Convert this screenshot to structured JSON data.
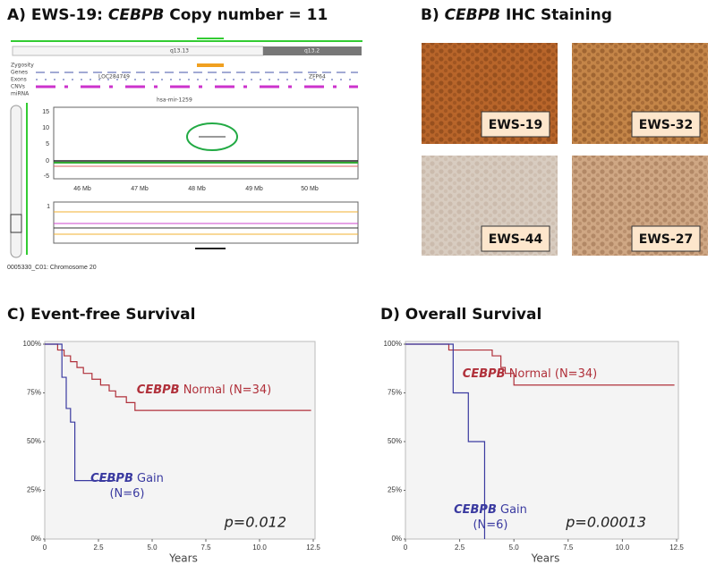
{
  "panel_a": {
    "title_prefix": "A) EWS-19: ",
    "title_gene": "CEBPB",
    "title_suffix": " Copy number = 11",
    "bands": [
      "q13.13",
      "q13.2"
    ],
    "tracks": [
      "Zygosity",
      "Genes",
      "Exons",
      "CNVs",
      "miRNA"
    ],
    "genes": [
      "LOC284749",
      "ZFP64"
    ],
    "mirna": "hsa-mir-1259",
    "yticks": [
      "15",
      "10",
      "5",
      "0",
      "-5"
    ],
    "xticks": [
      "46 Mb",
      "47 Mb",
      "48 Mb",
      "49 Mb",
      "50 Mb"
    ],
    "lower_ytick": "1",
    "caption": "0005330_C01: Chromosome 20"
  },
  "panel_b": {
    "title_prefix": "B) ",
    "title_gene": "CEBPB",
    "title_suffix": " IHC Staining",
    "samples": [
      "EWS-19",
      "EWS-32",
      "EWS-44",
      "EWS-27"
    ]
  },
  "chart_data": [
    {
      "type": "line",
      "step": true,
      "title": "C) Event-free Survival",
      "x_label": "Years",
      "xlim": [
        0,
        12.5
      ],
      "ylim": [
        0,
        100
      ],
      "xticks": [
        0,
        {
          "value": 2.5,
          "label": "2.5"
        },
        {
          "value": 5,
          "label": "5.0"
        },
        {
          "value": 7.5,
          "label": "7.5"
        },
        {
          "value": 10,
          "label": "10.0"
        },
        {
          "value": 12.5,
          "label": "12.5"
        }
      ],
      "yticks": [
        {
          "value": 0,
          "label": "0%"
        },
        {
          "value": 25,
          "label": "25%"
        },
        {
          "value": 50,
          "label": "50%"
        },
        {
          "value": 75,
          "label": "75%"
        },
        {
          "value": 100,
          "label": "100%"
        }
      ],
      "annotation": "p=0.012",
      "series": [
        {
          "name": "CEBPB Normal (N=34)",
          "color": "#b0303a",
          "x": [
            0,
            0.6,
            0.9,
            1.2,
            1.5,
            1.8,
            2.2,
            2.6,
            3.0,
            3.3,
            3.8,
            4.2,
            12.4
          ],
          "values": [
            100,
            97,
            94,
            91,
            88,
            85,
            82,
            79,
            76,
            73,
            70,
            66,
            66
          ]
        },
        {
          "name": "CEBPB Gain (N=6)",
          "color": "#3a3aa0",
          "x": [
            0,
            0.8,
            1.0,
            1.2,
            1.4,
            3.3
          ],
          "values": [
            100,
            83,
            67,
            60,
            30,
            30
          ]
        }
      ]
    },
    {
      "type": "line",
      "step": true,
      "title": "D) Overall Survival",
      "x_label": "Years",
      "xlim": [
        0,
        12.5
      ],
      "ylim": [
        0,
        100
      ],
      "xticks": [
        0,
        {
          "value": 2.5,
          "label": "2.5"
        },
        {
          "value": 5,
          "label": "5.0"
        },
        {
          "value": 7.5,
          "label": "7.5"
        },
        {
          "value": 10,
          "label": "10.0"
        },
        {
          "value": 12.5,
          "label": "12.5"
        }
      ],
      "yticks": [
        {
          "value": 0,
          "label": "0%"
        },
        {
          "value": 25,
          "label": "25%"
        },
        {
          "value": 50,
          "label": "50%"
        },
        {
          "value": 75,
          "label": "75%"
        },
        {
          "value": 100,
          "label": "100%"
        }
      ],
      "annotation": "p=0.00013",
      "series": [
        {
          "name": "CEBPB Normal (N=34)",
          "color": "#b0303a",
          "x": [
            0,
            2.0,
            4.0,
            4.4,
            4.6,
            5.0,
            12.4
          ],
          "values": [
            100,
            97,
            94,
            88,
            85,
            79,
            79
          ]
        },
        {
          "name": "CEBPB Gain (N=6)",
          "color": "#3a3aa0",
          "x": [
            0,
            2.2,
            2.9,
            3.65
          ],
          "values": [
            100,
            75,
            50,
            0
          ]
        }
      ]
    }
  ]
}
